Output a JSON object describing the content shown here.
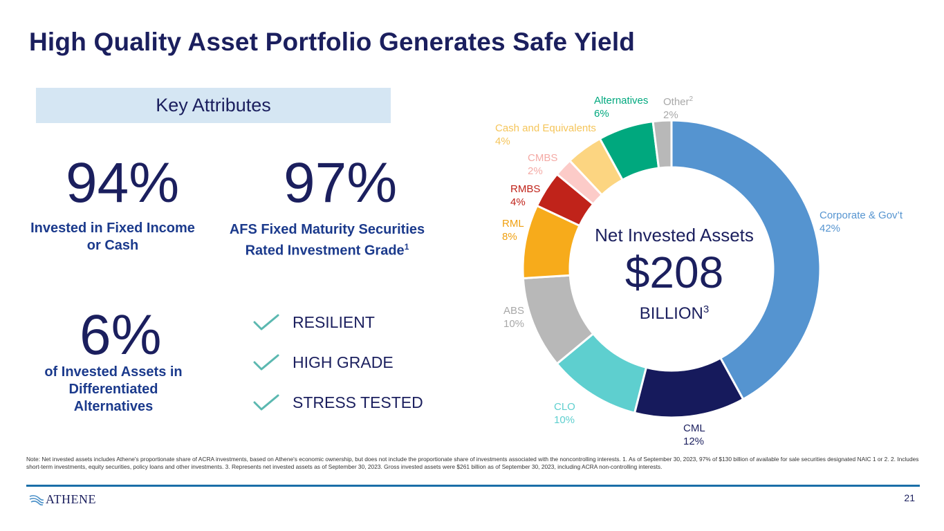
{
  "title": "High Quality Asset Portfolio Generates Safe Yield",
  "key_attributes_heading": "Key Attributes",
  "stats": [
    {
      "value": "94%",
      "label_line1": "Invested in Fixed Income",
      "label_line2": "or Cash"
    },
    {
      "value": "97%",
      "label_line1": "AFS Fixed Maturity Securities",
      "label_line2": "Rated Investment Grade",
      "label_sup": "1"
    },
    {
      "value": "6%",
      "label_line1": "of Invested Assets in",
      "label_line2": "Differentiated",
      "label_line3": "Alternatives"
    }
  ],
  "checklist": [
    "RESILIENT",
    "HIGH GRADE",
    "STRESS TESTED"
  ],
  "center": {
    "title": "Net Invested Assets",
    "amount": "$208",
    "unit": "BILLION",
    "unit_sup": "3"
  },
  "colors": {
    "navy": "#1b1f5e",
    "check": "#5bb8b0",
    "key_box": "#d5e6f3",
    "rule": "#1a6fa8"
  },
  "chart_data": {
    "type": "pie",
    "style": "donut",
    "segments": [
      {
        "name": "Corporate & Gov't",
        "display_name": "Corporate & Gov’t",
        "pct_label": "42%",
        "value": 42,
        "color": "#5594d0"
      },
      {
        "name": "CML",
        "display_name": "CML",
        "pct_label": "12%",
        "value": 12,
        "color": "#161a5c"
      },
      {
        "name": "CLO",
        "display_name": "CLO",
        "pct_label": "10%",
        "value": 10,
        "color": "#5ecfcf"
      },
      {
        "name": "ABS",
        "display_name": "ABS",
        "pct_label": "10%",
        "value": 10,
        "color": "#b8b8b8"
      },
      {
        "name": "RML",
        "display_name": "RML",
        "pct_label": "8%",
        "value": 8,
        "color": "#f7ab1b"
      },
      {
        "name": "RMBS",
        "display_name": "RMBS",
        "pct_label": "4%",
        "value": 4,
        "color": "#c0231a"
      },
      {
        "name": "CMBS",
        "display_name": "CMBS",
        "pct_label": "2%",
        "value": 2,
        "color": "#fccbc8"
      },
      {
        "name": "Cash and Equivalents",
        "display_name": "Cash and Equivalents",
        "pct_label": "4%",
        "value": 4,
        "color": "#fcd581"
      },
      {
        "name": "Alternatives",
        "display_name": "Alternatives",
        "pct_label": "6%",
        "value": 6,
        "color": "#00a87e"
      },
      {
        "name": "Other",
        "display_name": "Other",
        "name_sup": "2",
        "pct_label": "2%",
        "value": 2,
        "color": "#b8b8b8"
      }
    ]
  },
  "label_colors": {
    "Corporate & Gov't": "#5594d0",
    "CML": "#1b1f5e",
    "CLO": "#5ecfcf",
    "ABS": "#a8a8a8",
    "RML": "#f0a010",
    "RMBS": "#c0231a",
    "CMBS": "#f4aaa5",
    "Cash and Equivalents": "#f5c55a",
    "Alternatives": "#00a87e",
    "Other": "#a8a8a8"
  },
  "footnote": "Note: Net invested assets includes Athene's proportionate share of ACRA investments, based on Athene's economic ownership, but does not include the proportionate share of investments associated with the noncontrolling interests. 1. As of September 30, 2023, 97% of $130 billion of available for sale securities designated NAIC 1 or 2. 2. Includes short-term investments, equity securities, policy loans and other investments. 3. Represents net invested assets as of September 30, 2023. Gross invested assets were $261 billion as of September 30, 2023, including ACRA non-controlling interests.",
  "logo_text": "ATHENE",
  "page_number": "21"
}
